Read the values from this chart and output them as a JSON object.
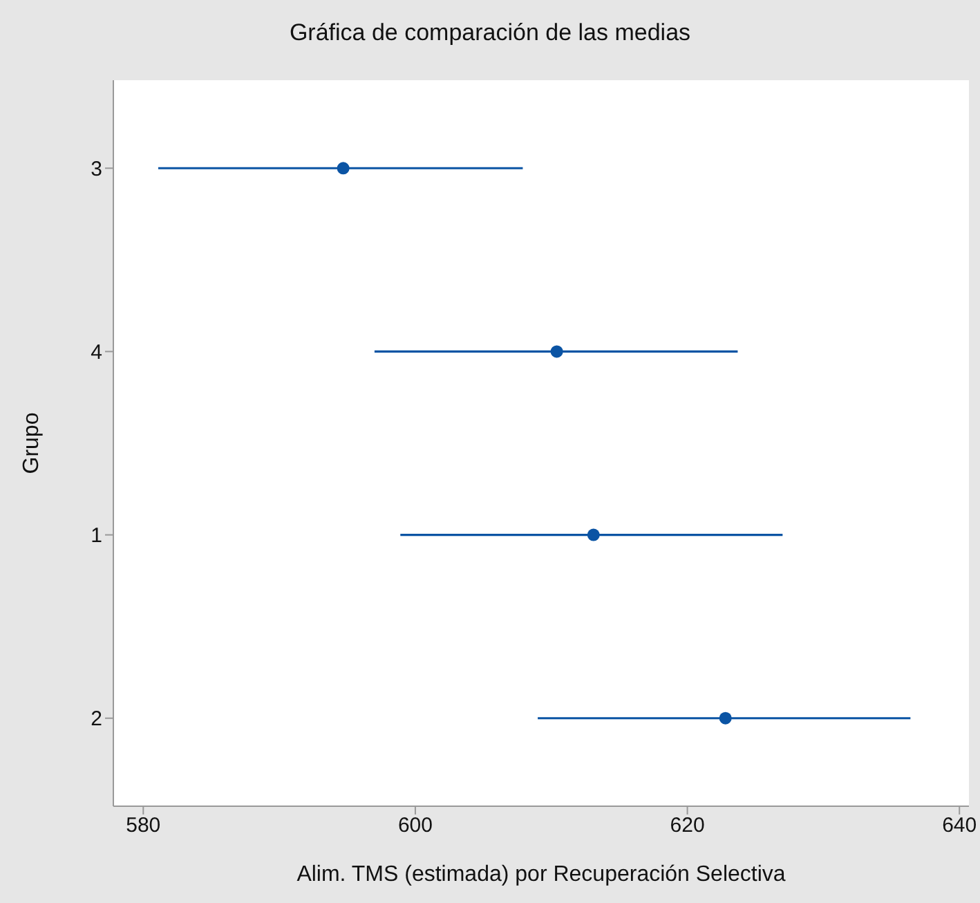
{
  "chart_data": {
    "type": "scatter",
    "orientation": "horizontal",
    "title": "Gráfica de comparación de las medias",
    "xlabel": "Alim. TMS (estimada) por Recuperación Selectiva",
    "ylabel": "Grupo",
    "categories": [
      "3",
      "4",
      "1",
      "2"
    ],
    "color": "#0b54a4",
    "values": [
      594.7,
      610.4,
      613.1,
      622.8
    ],
    "errors": [
      [
        581.1,
        607.9
      ],
      [
        597.0,
        623.7
      ],
      [
        598.9,
        627.0
      ],
      [
        609.0,
        636.4
      ]
    ],
    "xlim": [
      577.8,
      640.7
    ],
    "xticks": [
      580,
      600,
      620,
      640
    ],
    "marker": "circle",
    "grid": false,
    "legend": false
  }
}
